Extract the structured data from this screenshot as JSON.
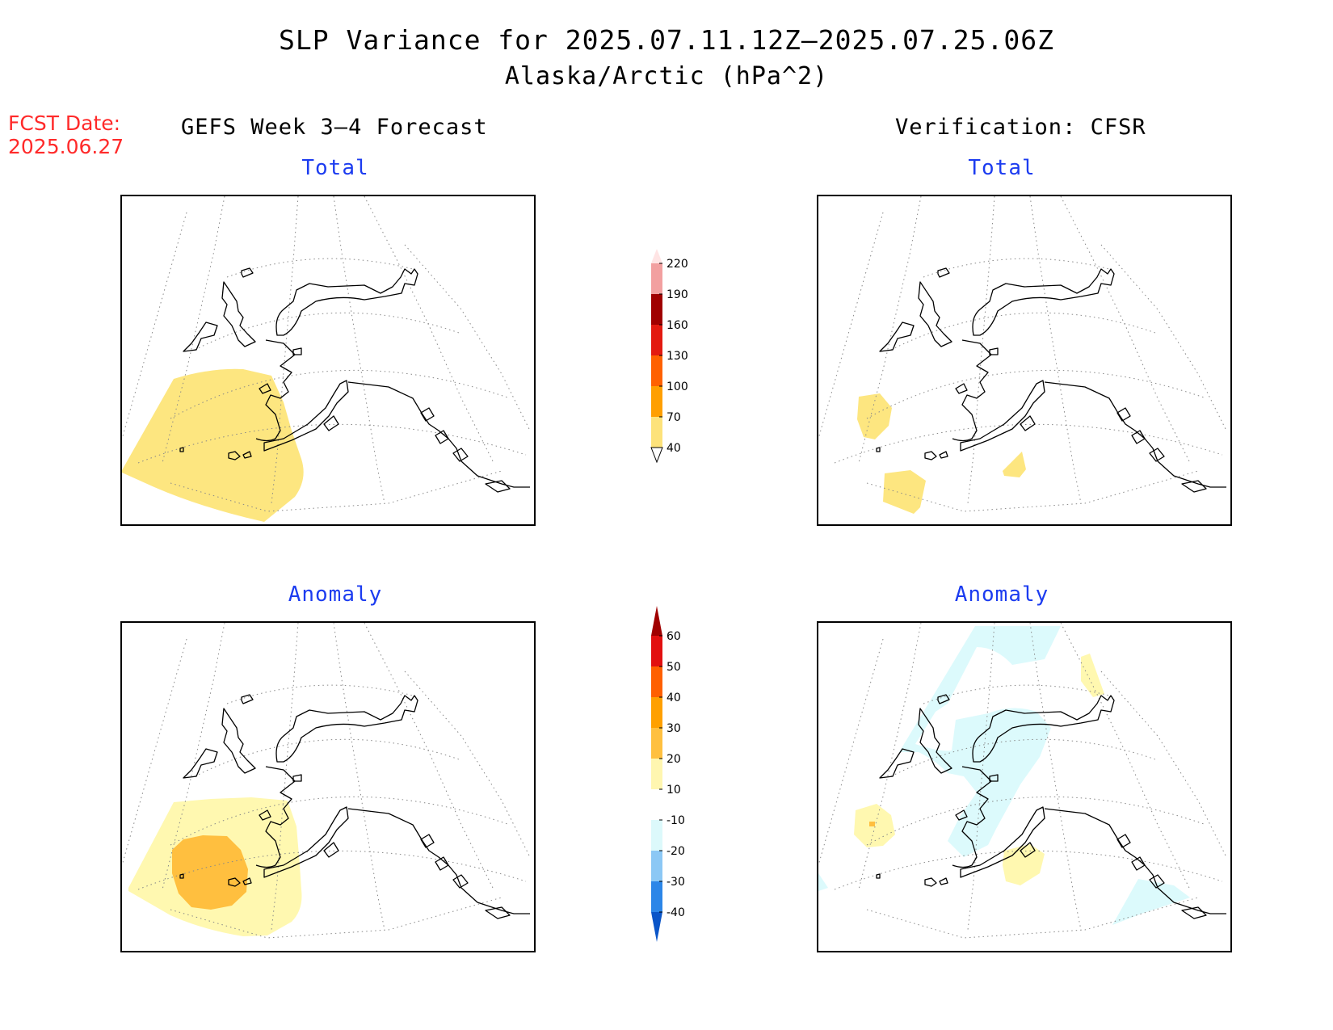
{
  "title": {
    "line1": "SLP Variance for 2025.07.11.12Z–2025.07.25.06Z",
    "line2": "Alaska/Arctic (hPa^2)"
  },
  "forecast_date": {
    "label": "FCST Date:",
    "value": "2025.06.27"
  },
  "columns": {
    "left": "GEFS Week 3–4 Forecast",
    "right": "Verification: CFSR"
  },
  "panels": {
    "forecast_total": {
      "title": "Total"
    },
    "verification_total": {
      "title": "Total"
    },
    "forecast_anomaly": {
      "title": "Anomaly"
    },
    "verification_anomaly": {
      "title": "Anomaly"
    }
  },
  "colorbars": {
    "total": {
      "labels": [
        "40",
        "70",
        "100",
        "130",
        "160",
        "190",
        "220"
      ],
      "colors": [
        "#fde27a",
        "#ff9f00",
        "#ff6100",
        "#e31a10",
        "#a00000",
        "#f2a0a0",
        "#ffe4e4"
      ]
    },
    "anomaly": {
      "labels": [
        "-40",
        "-30",
        "-20",
        "-10",
        "10",
        "20",
        "30",
        "40",
        "50",
        "60"
      ],
      "colors": [
        "#0a55c8",
        "#2c86e8",
        "#8cc8f5",
        "#dcf9fb",
        "#ffffff",
        "#fff6b0",
        "#ffc040",
        "#ffa000",
        "#ff6000",
        "#e21010",
        "#a00000"
      ]
    }
  },
  "fills": {
    "total_band": "#fde680",
    "anom_pos_light": "#fff8b0",
    "anom_pos_mid": "#ffbf3f",
    "anom_neg_light": "#dcfafc"
  }
}
